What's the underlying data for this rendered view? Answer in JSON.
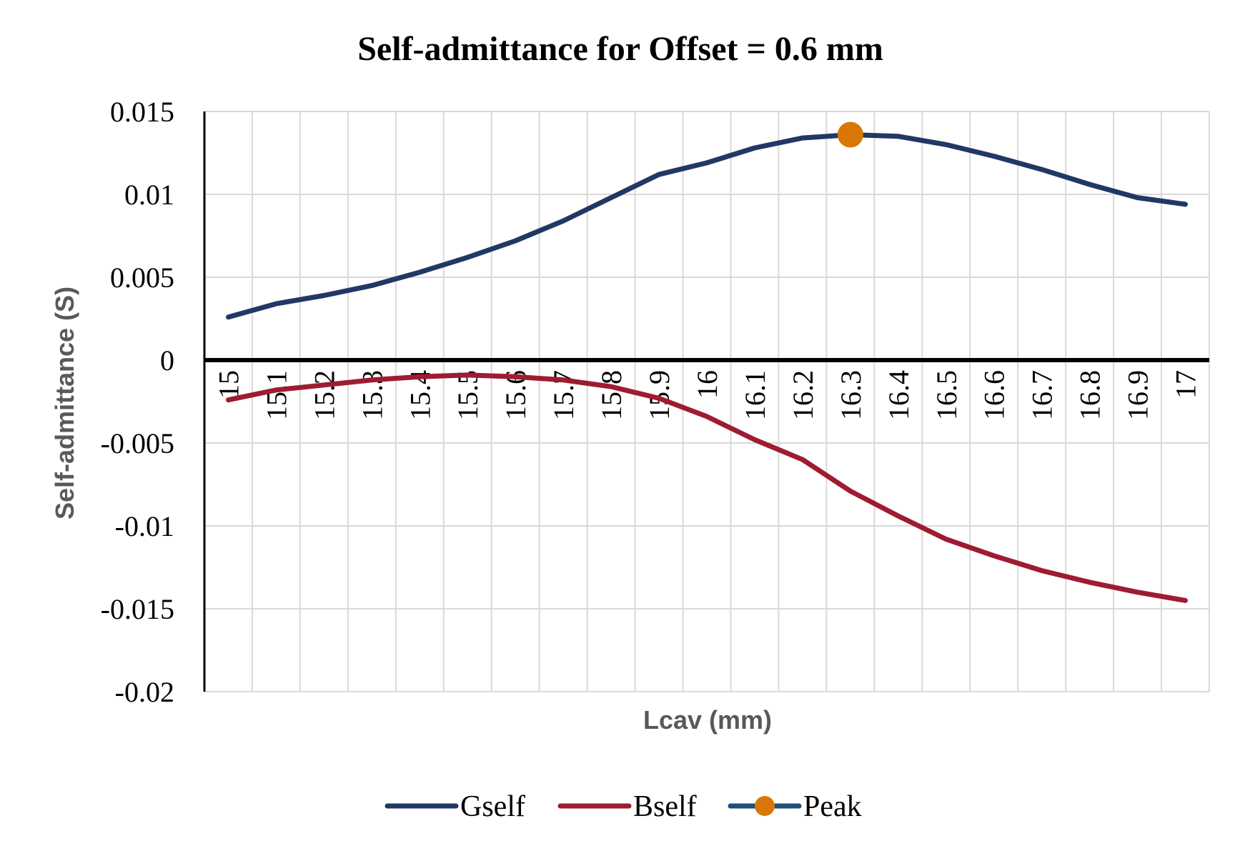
{
  "chart_data": {
    "type": "line",
    "title": "Self-admittance for Offset = 0.6 mm",
    "xlabel": "Lcav (mm)",
    "ylabel": "Self-admittance (S)",
    "categories": [
      "15",
      "15.1",
      "15.2",
      "15.3",
      "15.4",
      "15.5",
      "15.6",
      "15.7",
      "15.8",
      "15.9",
      "16",
      "16.1",
      "16.2",
      "16.3",
      "16.4",
      "16.5",
      "16.6",
      "16.7",
      "16.8",
      "16.9",
      "17"
    ],
    "ylim": [
      -0.02,
      0.015
    ],
    "yticks": [
      "0.015",
      "0.01",
      "0.005",
      "0",
      "-0.005",
      "-0.01",
      "-0.015",
      "-0.02"
    ],
    "ytick_values": [
      0.015,
      0.01,
      0.005,
      0,
      -0.005,
      -0.01,
      -0.015,
      -0.02
    ],
    "grid": true,
    "legend_position": "bottom",
    "series": [
      {
        "name": "Gself",
        "color": "#203864",
        "values": [
          0.0026,
          0.0034,
          0.0039,
          0.0045,
          0.0053,
          0.0062,
          0.0072,
          0.0084,
          0.0098,
          0.0112,
          0.0119,
          0.0128,
          0.0134,
          0.0136,
          0.0135,
          0.013,
          0.0123,
          0.0115,
          0.0106,
          0.0098,
          0.0094
        ]
      },
      {
        "name": "Bself",
        "color": "#9e1b32",
        "values": [
          -0.0024,
          -0.0018,
          -0.0015,
          -0.0012,
          -0.001,
          -0.0009,
          -0.001,
          -0.0012,
          -0.0016,
          -0.0023,
          -0.0034,
          -0.0048,
          -0.006,
          -0.0079,
          -0.0094,
          -0.0108,
          -0.0118,
          -0.0127,
          -0.0134,
          -0.014,
          -0.0145
        ]
      },
      {
        "name": "Peak",
        "color": "#d97706",
        "line_color": "#1f4e79",
        "marker": "circle",
        "x": "16.3",
        "value": 0.0136
      }
    ]
  }
}
